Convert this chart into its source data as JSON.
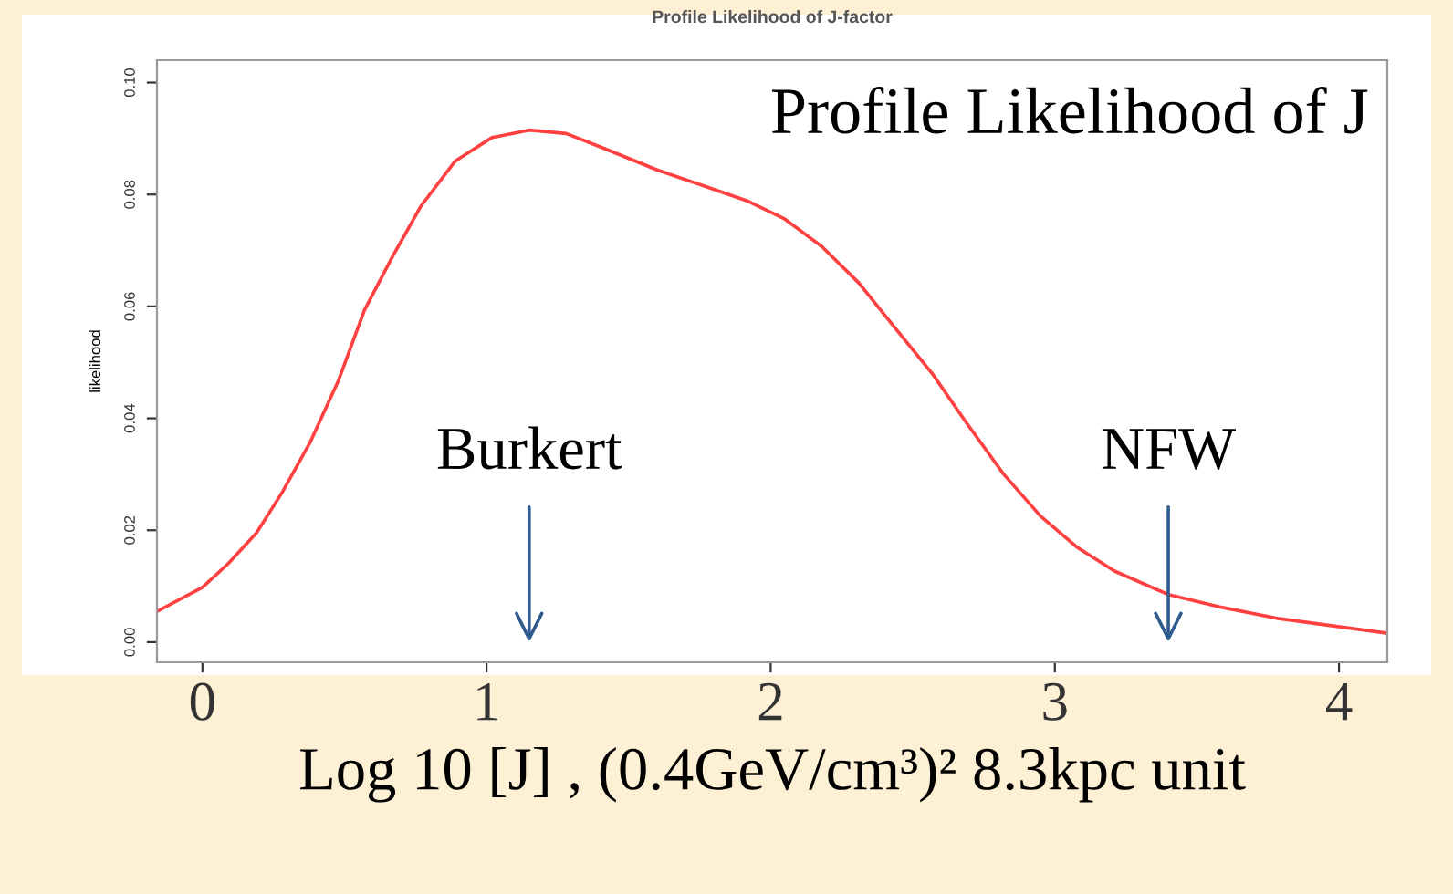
{
  "chart_data": {
    "type": "line",
    "title": "Profile Likelihood of J-factor",
    "xlabel": "Log 10 [J] , (0.4GeV/cm³)² 8.3kpc unit",
    "ylabel": "likelihood",
    "x": [
      -0.16,
      0,
      0.09,
      0.19,
      0.28,
      0.38,
      0.48,
      0.57,
      0.67,
      0.77,
      0.89,
      1.02,
      1.15,
      1.28,
      1.41,
      1.6,
      1.79,
      1.92,
      2.05,
      2.18,
      2.31,
      2.44,
      2.57,
      2.69,
      2.82,
      2.95,
      3.08,
      3.21,
      3.4,
      3.59,
      3.79,
      3.98,
      4.17
    ],
    "series": [
      {
        "color": "#ff4040",
        "values": [
          0.0055,
          0.0098,
          0.014,
          0.0195,
          0.0267,
          0.0358,
          0.0469,
          0.0593,
          0.069,
          0.078,
          0.086,
          0.0902,
          0.0915,
          0.0909,
          0.0883,
          0.0844,
          0.0811,
          0.0788,
          0.0756,
          0.0707,
          0.0642,
          0.056,
          0.0479,
          0.0391,
          0.03,
          0.0225,
          0.0169,
          0.0127,
          0.0085,
          0.0062,
          0.0042,
          0.0029,
          0.0016
        ]
      }
    ],
    "xlim": [
      -0.16,
      4.17
    ],
    "ylim": [
      -0.0036,
      0.104
    ],
    "xticks": [
      0,
      1,
      2,
      3,
      4
    ],
    "yticks": [
      {
        "value": 0,
        "label": "0.00"
      },
      {
        "value": 0.02,
        "label": "0.02"
      },
      {
        "value": 0.04,
        "label": "0.04"
      },
      {
        "value": 0.06,
        "label": "0.06"
      },
      {
        "value": 0.08,
        "label": "0.08"
      },
      {
        "value": 0.1,
        "label": "0.10"
      }
    ],
    "annotations": [
      "Profile Likelihood of J",
      "Burkert",
      "NFW"
    ],
    "grid": false,
    "legend": false,
    "marker": "none",
    "line_style": "solid"
  }
}
